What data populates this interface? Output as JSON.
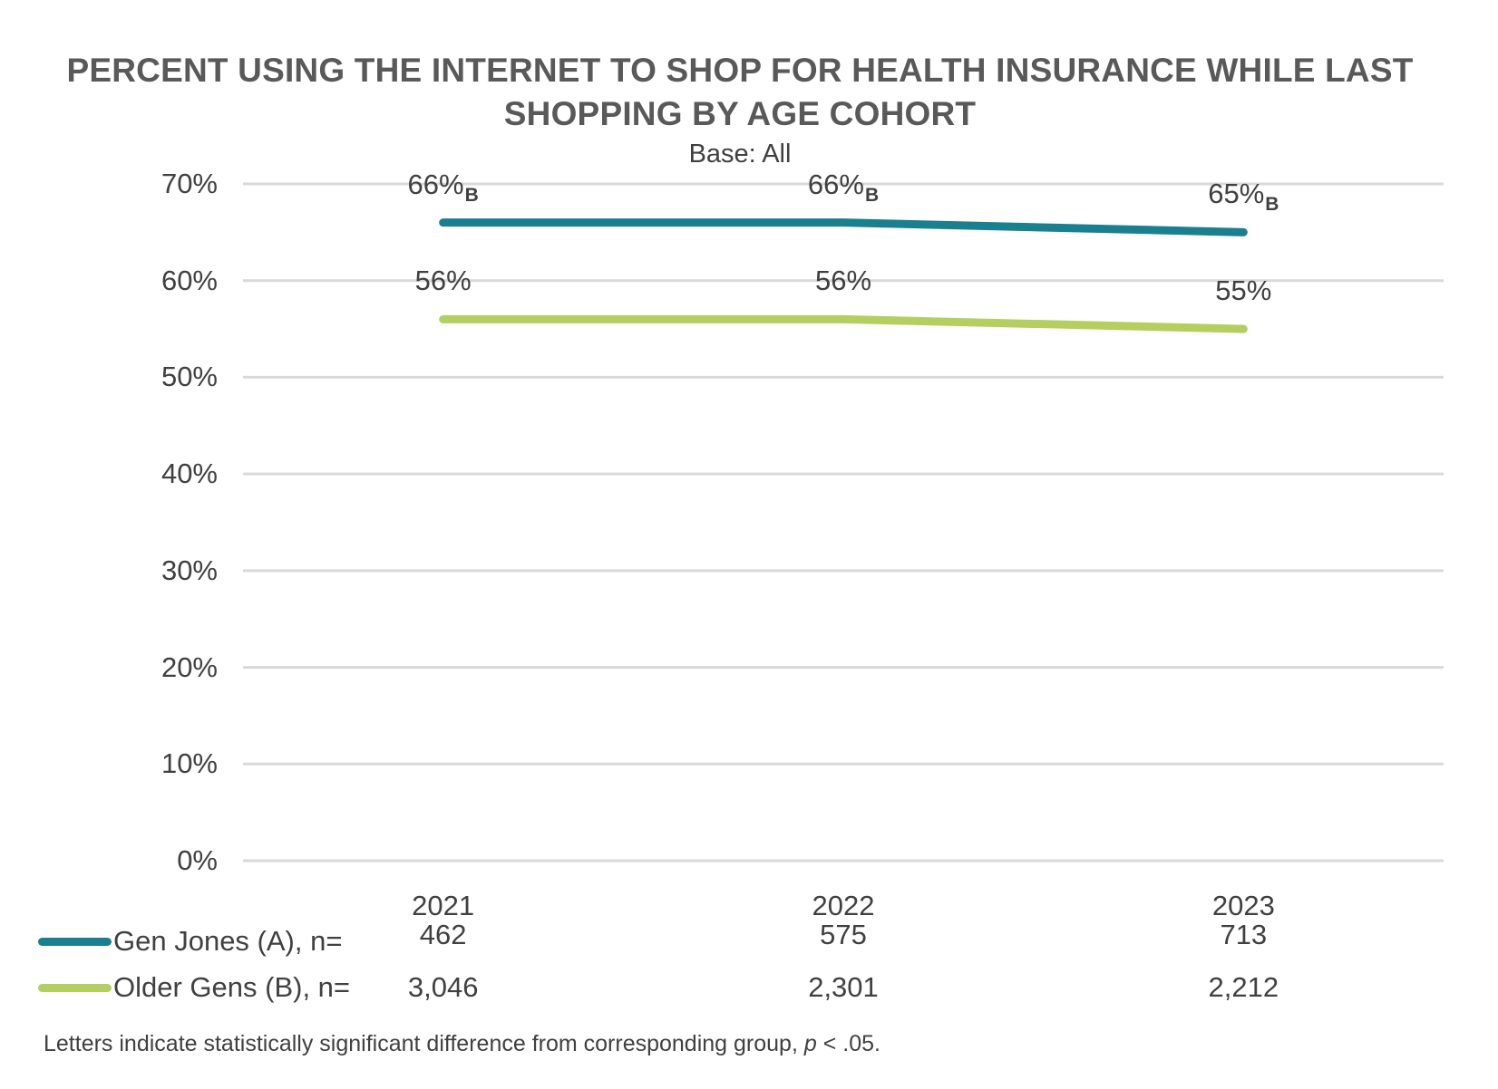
{
  "header": {
    "title_line1": "PERCENT USING THE INTERNET TO SHOP FOR HEALTH INSURANCE WHILE LAST",
    "title_line2": "SHOPPING BY AGE COHORT",
    "subtitle": "Base: All"
  },
  "chart_data": {
    "type": "line",
    "title": "PERCENT USING THE INTERNET TO SHOP FOR HEALTH INSURANCE WHILE LAST SHOPPING BY AGE COHORT",
    "subtitle": "Base: All",
    "categories": [
      "2021",
      "2022",
      "2023"
    ],
    "series": [
      {
        "name": "Gen Jones (A), n=",
        "color": "#1A7F8E",
        "values": [
          66,
          66,
          65
        ],
        "point_labels": [
          "66%",
          "66%",
          "65%"
        ],
        "point_label_subscripts": [
          "B",
          "B",
          "B"
        ],
        "n_values": [
          "462",
          "575",
          "713"
        ]
      },
      {
        "name": "Older Gens (B), n=",
        "color": "#B3CF60",
        "values": [
          56,
          56,
          55
        ],
        "point_labels": [
          "56%",
          "56%",
          "55%"
        ],
        "point_label_subscripts": [
          "",
          "",
          ""
        ],
        "n_values": [
          "3,046",
          "2,301",
          "2,212"
        ]
      }
    ],
    "xlabel": "",
    "ylabel": "",
    "ylim": [
      0,
      70
    ],
    "ytick_step": 10,
    "yticks": [
      "0%",
      "10%",
      "20%",
      "30%",
      "40%",
      "50%",
      "60%",
      "70%"
    ],
    "grid": true,
    "legend_position": "bottom-left"
  },
  "footnote": {
    "prefix": "Letters indicate statistically significant difference from corresponding group, ",
    "italic": "p",
    "suffix": " < .05."
  },
  "colors": {
    "gen_jones_teal": "#1A7F8E",
    "older_gens_green": "#B3CF60",
    "gridline": "#D9D9D9",
    "title_gray": "#595959",
    "label_gray": "#404040"
  }
}
